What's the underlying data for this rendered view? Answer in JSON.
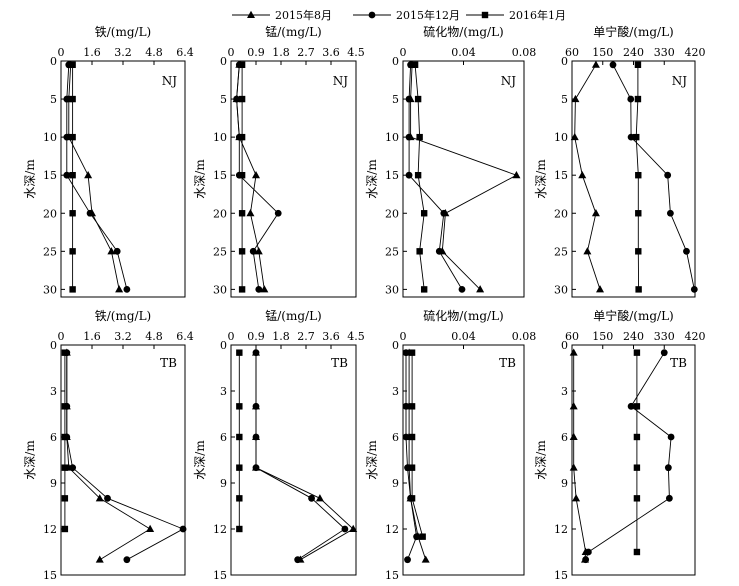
{
  "legend": [
    {
      "label": "2015年8月",
      "marker": "triangle"
    },
    {
      "label": "2015年12月",
      "marker": "circle"
    },
    {
      "label": "2016年1月",
      "marker": "square"
    }
  ],
  "chart_data": [
    {
      "type": "line",
      "site": "NJ",
      "title": "铁/(mg/L)",
      "ylabel": "水深/m",
      "xlim": [
        0,
        6.4
      ],
      "xticks": [
        "0",
        "1.6",
        "3.2",
        "4.8",
        "6.4"
      ],
      "ylim": [
        0,
        31
      ],
      "yticks": [
        0,
        5,
        10,
        15,
        20,
        25,
        30
      ],
      "yticklabels": [
        "0",
        "5",
        "10",
        "15",
        "20",
        "25",
        "30"
      ],
      "depth": [
        0.5,
        5,
        10,
        15,
        20,
        25,
        30
      ],
      "series": [
        {
          "name": "2015年8月",
          "values": [
            0.5,
            0.4,
            0.4,
            1.4,
            1.6,
            2.6,
            3.0
          ]
        },
        {
          "name": "2015年12月",
          "values": [
            0.4,
            0.3,
            0.3,
            0.3,
            1.5,
            2.9,
            3.4
          ]
        },
        {
          "name": "2016年1月",
          "values": [
            0.6,
            0.6,
            0.6,
            0.6,
            0.6,
            0.6,
            0.6
          ]
        }
      ]
    },
    {
      "type": "line",
      "site": "NJ",
      "title": "锰/(mg/L)",
      "ylabel": "水深/m",
      "xlim": [
        0,
        4.5
      ],
      "xticks": [
        "0",
        "0.9",
        "1.8",
        "2.7",
        "3.6",
        "4.5"
      ],
      "ylim": [
        0,
        31
      ],
      "yticks": [
        0,
        5,
        10,
        15,
        20,
        25,
        30
      ],
      "yticklabels": [
        "0",
        "5",
        "10",
        "15",
        "20",
        "25",
        "30"
      ],
      "depth": [
        0.5,
        5,
        10,
        15,
        20,
        25,
        30
      ],
      "series": [
        {
          "name": "2015年8月",
          "values": [
            0.3,
            0.2,
            0.3,
            0.9,
            0.7,
            1.0,
            1.2
          ]
        },
        {
          "name": "2015年12月",
          "values": [
            0.3,
            0.2,
            0.3,
            0.3,
            1.7,
            0.8,
            1.0
          ]
        },
        {
          "name": "2016年1月",
          "values": [
            0.4,
            0.4,
            0.4,
            0.4,
            0.4,
            0.4,
            0.4
          ]
        }
      ]
    },
    {
      "type": "line",
      "site": "NJ",
      "title": "硫化物/(mg/L)",
      "ylabel": "水深/m",
      "xlim": [
        0,
        0.08
      ],
      "xticks": [
        "0",
        "0.04",
        "0.08"
      ],
      "ylim": [
        0,
        31
      ],
      "yticks": [
        0,
        5,
        10,
        15,
        20,
        25,
        30
      ],
      "yticklabels": [
        "0",
        "5",
        "10",
        "15",
        "20",
        "25",
        "30"
      ],
      "depth": [
        0.5,
        5,
        10,
        15,
        20,
        25,
        30
      ],
      "series": [
        {
          "name": "2015年8月",
          "values": [
            0.006,
            0.005,
            0.005,
            0.075,
            0.028,
            0.026,
            0.051
          ]
        },
        {
          "name": "2015年12月",
          "values": [
            0.005,
            0.004,
            0.004,
            0.004,
            0.027,
            0.024,
            0.039
          ]
        },
        {
          "name": "2016年1月",
          "values": [
            0.008,
            0.01,
            0.011,
            0.01,
            0.014,
            0.011,
            0.014
          ]
        }
      ]
    },
    {
      "type": "line",
      "site": "NJ",
      "title": "单宁酸/(mg/L)",
      "ylabel": "水深/m",
      "xlim": [
        60,
        420
      ],
      "xticks": [
        "60",
        "150",
        "240",
        "330",
        "420"
      ],
      "ylim": [
        0,
        31
      ],
      "yticks": [
        0,
        5,
        10,
        15,
        20,
        25,
        30
      ],
      "yticklabels": [
        "0",
        "5",
        "10",
        "15",
        "20",
        "25",
        "30"
      ],
      "depth": [
        0.5,
        5,
        10,
        15,
        20,
        25,
        30
      ],
      "series": [
        {
          "name": "2015年8月",
          "values": [
            130,
            70,
            68,
            90,
            130,
            105,
            142
          ]
        },
        {
          "name": "2015年12月",
          "values": [
            180,
            232,
            233,
            340,
            348,
            395,
            418
          ]
        },
        {
          "name": "2016年1月",
          "values": [
            253,
            253,
            248,
            254,
            254,
            254,
            255
          ]
        }
      ]
    },
    {
      "type": "line",
      "site": "TB",
      "title": "铁/(mg/L)",
      "ylabel": "水深/m",
      "xlim": [
        0,
        6.4
      ],
      "xticks": [
        "0",
        "1.6",
        "3.2",
        "4.8",
        "6.4"
      ],
      "ylim": [
        0,
        15
      ],
      "yticks": [
        0,
        3,
        6,
        9,
        12,
        15
      ],
      "yticklabels": [
        "0",
        "3",
        "6",
        "9",
        "12",
        "15"
      ],
      "depth": [
        0.5,
        4,
        6,
        8,
        10,
        12,
        14
      ],
      "series": [
        {
          "name": "2015年8月",
          "values": [
            0.3,
            0.3,
            0.3,
            0.4,
            2.0,
            4.6,
            2.0
          ]
        },
        {
          "name": "2015年12月",
          "values": [
            0.3,
            0.3,
            0.3,
            0.6,
            2.4,
            6.3,
            3.4
          ]
        },
        {
          "name": "2016年1月",
          "values": [
            0.2,
            0.2,
            0.2,
            0.2,
            0.2,
            0.2,
            null
          ]
        }
      ]
    },
    {
      "type": "line",
      "site": "TB",
      "title": "锰/(mg/L)",
      "ylabel": "水深/m",
      "xlim": [
        0,
        4.5
      ],
      "xticks": [
        "0",
        "0.9",
        "1.8",
        "2.7",
        "3.6",
        "4.5"
      ],
      "ylim": [
        0,
        15
      ],
      "yticks": [
        0,
        3,
        6,
        9,
        12,
        15
      ],
      "yticklabels": [
        "0",
        "3",
        "6",
        "9",
        "12",
        "15"
      ],
      "depth": [
        0.5,
        4,
        6,
        8,
        10,
        12,
        14
      ],
      "series": [
        {
          "name": "2015年8月",
          "values": [
            0.9,
            0.9,
            0.9,
            0.9,
            3.2,
            4.4,
            2.5
          ]
        },
        {
          "name": "2015年12月",
          "values": [
            0.9,
            0.9,
            0.9,
            0.9,
            2.9,
            4.1,
            2.4
          ]
        },
        {
          "name": "2016年1月",
          "values": [
            0.3,
            0.3,
            0.3,
            0.3,
            0.3,
            0.3,
            null
          ]
        }
      ]
    },
    {
      "type": "line",
      "site": "TB",
      "title": "硫化物/(mg/L)",
      "ylabel": "水深/m",
      "xlim": [
        0,
        0.08
      ],
      "xticks": [
        "0",
        "0.04",
        "0.08"
      ],
      "ylim": [
        0,
        15
      ],
      "yticks": [
        0,
        3,
        6,
        9,
        12,
        15
      ],
      "yticklabels": [
        "0",
        "3",
        "6",
        "9",
        "12",
        "15"
      ],
      "depth": [
        0.5,
        4,
        6,
        8,
        10,
        12.5,
        14
      ],
      "series": [
        {
          "name": "2015年8月",
          "values": [
            0.004,
            0.004,
            0.004,
            0.004,
            0.005,
            0.01,
            0.015
          ]
        },
        {
          "name": "2015年12月",
          "values": [
            0.002,
            0.002,
            0.002,
            0.003,
            0.005,
            0.009,
            0.003
          ]
        },
        {
          "name": "2016年1月",
          "values": [
            0.006,
            0.006,
            0.006,
            0.006,
            0.006,
            0.013,
            null
          ]
        }
      ]
    },
    {
      "type": "line",
      "site": "TB",
      "title": "单宁酸/(mg/L)",
      "ylabel": "水深/m",
      "xlim": [
        60,
        420
      ],
      "xticks": [
        "60",
        "150",
        "240",
        "330",
        "420"
      ],
      "ylim": [
        0,
        15
      ],
      "yticks": [
        0,
        3,
        6,
        9,
        12,
        15
      ],
      "yticklabels": [
        "0",
        "3",
        "6",
        "9",
        "12",
        "15"
      ],
      "depth": [
        0.5,
        4,
        6,
        8,
        10,
        13.5,
        14
      ],
      "series": [
        {
          "name": "2015年8月",
          "values": [
            65,
            65,
            65,
            65,
            72,
            100,
            98
          ]
        },
        {
          "name": "2015年12月",
          "values": [
            330,
            233,
            350,
            342,
            345,
            108,
            100
          ]
        },
        {
          "name": "2016年1月",
          "values": [
            250,
            250,
            250,
            250,
            250,
            250,
            null
          ]
        }
      ]
    }
  ]
}
